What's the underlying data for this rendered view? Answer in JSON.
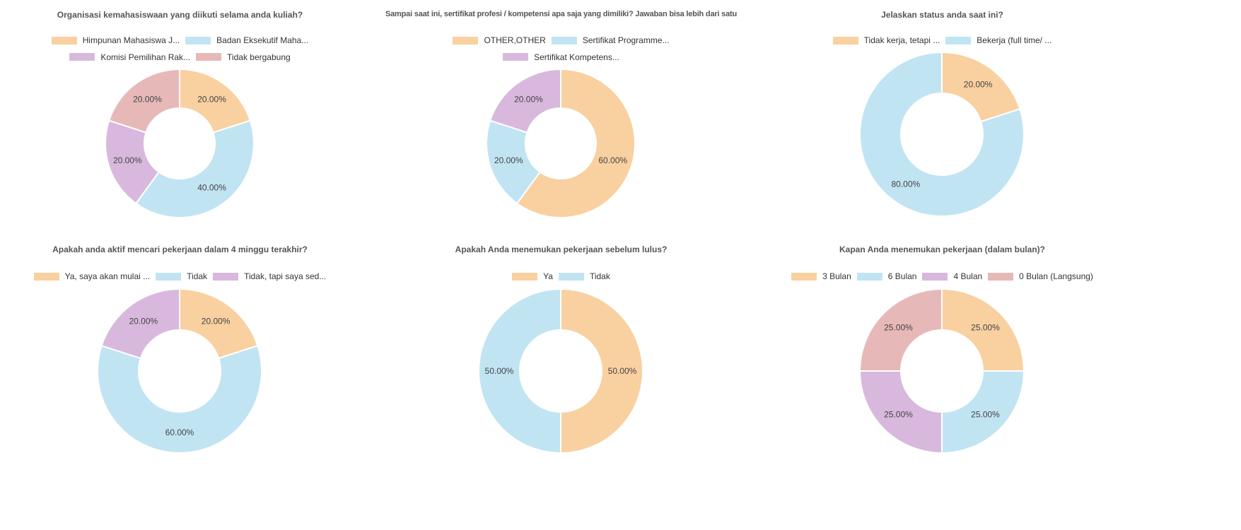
{
  "colors": {
    "orange": "#f9d0a0",
    "blue": "#c1e4f3",
    "purple": "#d9b8de",
    "pink": "#e6b9b8"
  },
  "chart_data": [
    {
      "type": "pie",
      "title": "Organisasi kemahasiswaan yang diikuti selama anda kuliah?",
      "legend_rows": [
        [
          0,
          1
        ],
        [
          2,
          3
        ]
      ],
      "slices": [
        {
          "label": "Himpunan Mahasiswa J...",
          "value": 20,
          "text": "20.00%",
          "color": "#f9d0a0"
        },
        {
          "label": "Badan Eksekutif Maha...",
          "value": 40,
          "text": "40.00%",
          "color": "#c1e4f3"
        },
        {
          "label": "Komisi Pemilihan Rak...",
          "value": 20,
          "text": "20.00%",
          "color": "#d9b8de"
        },
        {
          "label": "Tidak bergabung",
          "value": 20,
          "text": "20.00%",
          "color": "#e6b9b8"
        }
      ]
    },
    {
      "type": "pie",
      "title": "Sampai saat ini, sertifikat profesi / kompetensi apa saja yang dimiliki? Jawaban bisa lebih dari satu",
      "legend_rows": [
        [
          0,
          1
        ],
        [
          2
        ]
      ],
      "slices": [
        {
          "label": "OTHER,OTHER",
          "value": 60,
          "text": "60.00%",
          "color": "#f9d0a0"
        },
        {
          "label": "Sertifikat Programme...",
          "value": 20,
          "text": "20.00%",
          "color": "#c1e4f3"
        },
        {
          "label": "Sertifikat Kompetens...",
          "value": 20,
          "text": "20.00%",
          "color": "#d9b8de"
        }
      ]
    },
    {
      "type": "pie",
      "title": "Jelaskan status anda saat ini?",
      "legend_rows": [
        [
          0,
          1
        ]
      ],
      "slices": [
        {
          "label": "Tidak kerja, tetapi ...",
          "value": 20,
          "text": "20.00%",
          "color": "#f9d0a0"
        },
        {
          "label": "Bekerja (full time/ ...",
          "value": 80,
          "text": "80.00%",
          "color": "#c1e4f3"
        }
      ]
    },
    {
      "type": "pie",
      "title": "Apakah anda aktif mencari pekerjaan dalam 4 minggu terakhir?",
      "legend_rows": [
        [
          0,
          1,
          2
        ]
      ],
      "slices": [
        {
          "label": "Ya, saya akan mulai ...",
          "value": 20,
          "text": "20.00%",
          "color": "#f9d0a0"
        },
        {
          "label": "Tidak",
          "value": 60,
          "text": "60.00%",
          "color": "#c1e4f3"
        },
        {
          "label": "Tidak, tapi saya sed...",
          "value": 20,
          "text": "20.00%",
          "color": "#d9b8de"
        }
      ]
    },
    {
      "type": "pie",
      "title": "Apakah Anda menemukan pekerjaan sebelum lulus?",
      "legend_rows": [
        [
          0,
          1
        ]
      ],
      "slices": [
        {
          "label": "Ya",
          "value": 50,
          "text": "50.00%",
          "color": "#f9d0a0"
        },
        {
          "label": "Tidak",
          "value": 50,
          "text": "50.00%",
          "color": "#c1e4f3"
        }
      ]
    },
    {
      "type": "pie",
      "title": "Kapan Anda menemukan pekerjaan (dalam bulan)?",
      "legend_rows": [
        [
          0,
          1,
          2,
          3
        ]
      ],
      "slices": [
        {
          "label": "3 Bulan",
          "value": 25,
          "text": "25.00%",
          "color": "#f9d0a0"
        },
        {
          "label": "6 Bulan",
          "value": 25,
          "text": "25.00%",
          "color": "#c1e4f3"
        },
        {
          "label": "4 Bulan",
          "value": 25,
          "text": "25.00%",
          "color": "#d9b8de"
        },
        {
          "label": "0 Bulan (Langsung)",
          "value": 25,
          "text": "25.00%",
          "color": "#e6b9b8"
        }
      ]
    }
  ]
}
